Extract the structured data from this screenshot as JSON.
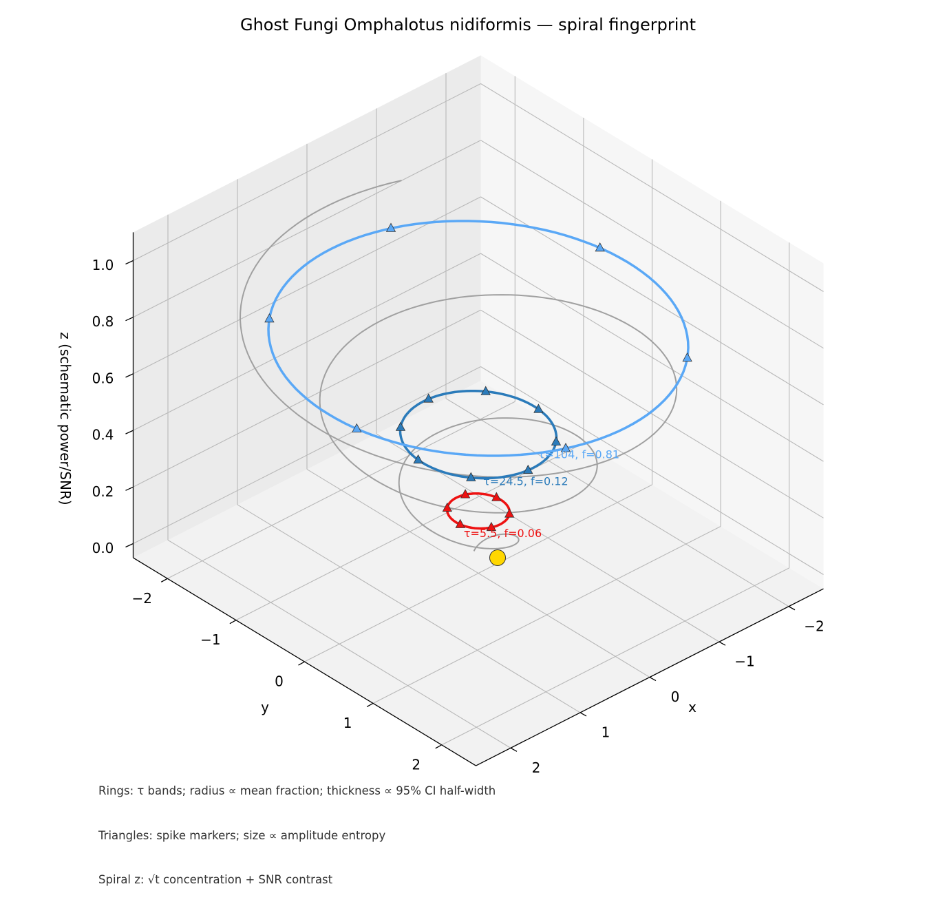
{
  "chart_data": {
    "type": "3d-spiral",
    "title": "Ghost Fungi Omphalotus nidiformis — spiral fingerprint",
    "xlabel": "x",
    "ylabel": "y",
    "zlabel": "z (schematic power/SNR)",
    "xlim": [
      -2.5,
      2.5
    ],
    "ylim": [
      -2.5,
      2.5
    ],
    "zlim": [
      -0.05,
      1.1
    ],
    "x_ticks": [
      "−2",
      "−1",
      "0",
      "1",
      "2"
    ],
    "y_ticks": [
      "−2",
      "−1",
      "0",
      "1",
      "2"
    ],
    "z_ticks": [
      "0.0",
      "0.2",
      "0.4",
      "0.6",
      "0.8",
      "1.0"
    ],
    "grid": true,
    "spiral": {
      "color": "#a0a0a0",
      "turns": 3,
      "radius_start": 0.15,
      "radius_end": 2.6,
      "z_start": 0.0,
      "z_end": 0.85
    },
    "origin_marker": {
      "x": 0,
      "y": 0,
      "z": 0.0,
      "color": "#ffd700"
    },
    "rings": [
      {
        "label": "τ=5.5, f=0.06",
        "tau": 5.5,
        "f": 0.06,
        "radius": 0.32,
        "z": 0.17,
        "color": "#ee1111",
        "spikes": 6,
        "spike_start_deg": 20
      },
      {
        "label": "τ=24.5, f=0.12",
        "tau": 24.5,
        "f": 0.12,
        "radius": 0.8,
        "z": 0.44,
        "color": "#2b7bba",
        "spikes": 8,
        "spike_start_deg": 5
      },
      {
        "label": "τ=104, f=0.81",
        "tau": 104,
        "f": 0.81,
        "radius": 2.15,
        "z": 0.78,
        "color": "#5aa8f6",
        "spikes": 6,
        "spike_start_deg": 20
      }
    ]
  },
  "footnote": {
    "lines": [
      "Rings: τ bands; radius ∝ mean fraction; thickness ∝ 95% CI half-width",
      "Triangles: spike markers; size ∝ amplitude entropy",
      "Spiral z: √t concentration + SNR contrast"
    ]
  }
}
